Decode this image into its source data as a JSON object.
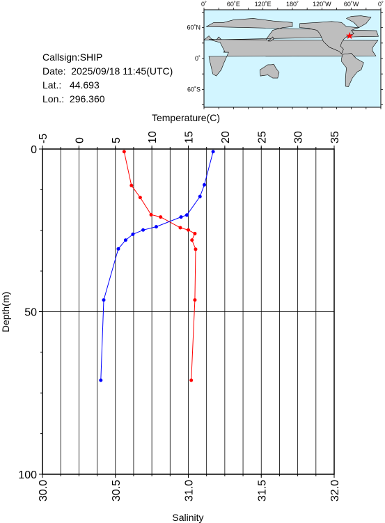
{
  "info": {
    "callsign": "Callsign:SHIP",
    "date": "Date:  2025/09/18 11:45(UTC)",
    "lat": "Lat.:   44.693",
    "lon": "Lon.:  296.360"
  },
  "map": {
    "lon_ticks": [
      "0˚",
      "60˚E",
      "120˚E",
      "180˚",
      "120˚W",
      "60˚W",
      "0˚"
    ],
    "lat_ticks": [
      "60˚N",
      "0˚",
      "60˚S"
    ],
    "ocean_color": "#d2f5ff",
    "land_color": "#bebebe",
    "marker": {
      "lon": 296.36,
      "lat": 44.693,
      "color": "#ff0000"
    }
  },
  "chart_data": {
    "type": "line",
    "ylabel": "Depth(m)",
    "y_ticks": [
      0,
      50,
      100
    ],
    "ylim": [
      0,
      100
    ],
    "y_inverted": true,
    "top_axis": {
      "label": "Temperature(C)",
      "range": [
        -5,
        35
      ],
      "ticks": [
        -5,
        0,
        5,
        10,
        15,
        20,
        25,
        30,
        35
      ]
    },
    "bottom_axis": {
      "label": "Salinity",
      "range": [
        30.0,
        32.0
      ],
      "ticks": [
        "30.0",
        "30.5",
        "31.0",
        "31.5",
        "32.0"
      ]
    },
    "grid": true,
    "series": [
      {
        "axis": "temperature",
        "color": "#ff0000",
        "points": [
          {
            "depth": 0.8,
            "value": 6.2
          },
          {
            "depth": 11.2,
            "value": 7.2
          },
          {
            "depth": 14.9,
            "value": 8.4
          },
          {
            "depth": 20.2,
            "value": 9.9
          },
          {
            "depth": 20.9,
            "value": 11.2
          },
          {
            "depth": 24.2,
            "value": 13.9
          },
          {
            "depth": 24.9,
            "value": 15.0
          },
          {
            "depth": 26.0,
            "value": 15.9
          },
          {
            "depth": 28.0,
            "value": 15.5
          },
          {
            "depth": 30.8,
            "value": 16.0
          },
          {
            "depth": 46.4,
            "value": 15.9
          },
          {
            "depth": 71.1,
            "value": 15.4
          }
        ]
      },
      {
        "axis": "salinity",
        "color": "#0000ff",
        "points": [
          {
            "depth": 0.8,
            "value": 31.17
          },
          {
            "depth": 11.0,
            "value": 31.11
          },
          {
            "depth": 14.6,
            "value": 31.08
          },
          {
            "depth": 20.3,
            "value": 30.99
          },
          {
            "depth": 20.9,
            "value": 30.95
          },
          {
            "depth": 23.9,
            "value": 30.78
          },
          {
            "depth": 24.9,
            "value": 30.69
          },
          {
            "depth": 26.2,
            "value": 30.62
          },
          {
            "depth": 28.0,
            "value": 30.57
          },
          {
            "depth": 30.7,
            "value": 30.52
          },
          {
            "depth": 46.4,
            "value": 30.42
          },
          {
            "depth": 71.1,
            "value": 30.4
          }
        ]
      }
    ]
  }
}
